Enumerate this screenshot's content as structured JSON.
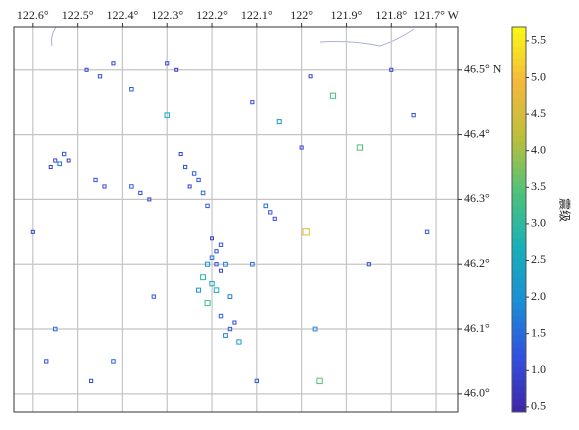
{
  "chart_data": {
    "type": "scatter",
    "xlabel_suffix_note": null,
    "xlim": [
      122.642,
      121.651
    ],
    "ylim": [
      45.972,
      46.566
    ],
    "xticks": [
      {
        "value": 122.6,
        "label": "122.6°"
      },
      {
        "value": 122.5,
        "label": "122.5°"
      },
      {
        "value": 122.4,
        "label": "122.4°"
      },
      {
        "value": 122.3,
        "label": "122.3°"
      },
      {
        "value": 122.2,
        "label": "122.2°"
      },
      {
        "value": 122.1,
        "label": "122.1°"
      },
      {
        "value": 122,
        "label": "122°"
      },
      {
        "value": 121.9,
        "label": "121.9°"
      },
      {
        "value": 121.8,
        "label": "121.8°"
      },
      {
        "value": 121.7,
        "label": "121.7° W"
      }
    ],
    "yticks": [
      {
        "value": 46.5,
        "label": "46.5° N"
      },
      {
        "value": 46.4,
        "label": "46.4°"
      },
      {
        "value": 46.3,
        "label": "46.3°"
      },
      {
        "value": 46.2,
        "label": "46.2°"
      },
      {
        "value": 46.1,
        "label": "46.1°"
      },
      {
        "value": 46.0,
        "label": "46.0°"
      }
    ],
    "grid": true,
    "colorbar_label": "震级",
    "clim": [
      0.43,
      5.69
    ],
    "cticks": [
      0.5,
      {
        "value": 1.0,
        "label": "1.0"
      },
      1.5,
      {
        "value": 2.0,
        "label": "2.0"
      },
      2.5,
      {
        "value": 3.0,
        "label": "3.0"
      },
      3.5,
      {
        "value": 4.0,
        "label": "4.0"
      },
      4.5,
      {
        "value": 5.0,
        "label": "5.0"
      },
      5.5
    ],
    "colormap": [
      "#3e26a8",
      "#3150df",
      "#1a8fd6",
      "#17b0b8",
      "#4fc279",
      "#bdbf3a",
      "#f5b83a",
      "#f9fa14"
    ],
    "events": {
      "lon": [
        122.19,
        122.2,
        122.18,
        122.21,
        122.19,
        122.17,
        122.22,
        122.2,
        122.18,
        122.19,
        122.16,
        122.21,
        122.23,
        122.18,
        122.2,
        122.55,
        122.53,
        122.56,
        122.54,
        122.52,
        122.26,
        122.24,
        122.25,
        122.23,
        122.27,
        122.22,
        122.21,
        122.48,
        122.45,
        122.42,
        122.3,
        122.28,
        122.38,
        122.07,
        122.06,
        122.08,
        122.16,
        122.15,
        122.17,
        122.14,
        122.36,
        122.34,
        122.38,
        122.46,
        122.44,
        121.93,
        122.0,
        121.87,
        121.99,
        121.97,
        121.96,
        122.6,
        122.57,
        122.47,
        122.1,
        121.75,
        121.8,
        121.72,
        121.85,
        121.98,
        122.11,
        122.3,
        122.55,
        122.33,
        122.42,
        122.05,
        122.11
      ],
      "lat": [
        46.2,
        46.21,
        46.19,
        46.2,
        46.22,
        46.2,
        46.18,
        46.17,
        46.23,
        46.16,
        46.15,
        46.14,
        46.16,
        46.12,
        46.24,
        46.36,
        46.37,
        46.35,
        46.355,
        46.36,
        46.35,
        46.34,
        46.32,
        46.33,
        46.37,
        46.31,
        46.29,
        46.5,
        46.49,
        46.51,
        46.51,
        46.5,
        46.47,
        46.28,
        46.27,
        46.29,
        46.1,
        46.11,
        46.09,
        46.08,
        46.31,
        46.3,
        46.32,
        46.33,
        46.32,
        46.46,
        46.38,
        46.38,
        46.25,
        46.1,
        46.02,
        46.25,
        46.05,
        46.02,
        46.02,
        46.43,
        46.5,
        46.25,
        46.2,
        46.49,
        46.45,
        46.43,
        46.1,
        46.15,
        46.05,
        46.42,
        46.2
      ],
      "magnitude": [
        1.2,
        1.5,
        0.9,
        2.1,
        1.1,
        1.8,
        3.0,
        2.4,
        1.3,
        2.6,
        1.7,
        3.2,
        2.0,
        1.4,
        0.8,
        1.0,
        1.3,
        0.9,
        1.6,
        0.8,
        1.1,
        1.4,
        0.9,
        1.2,
        1.0,
        1.5,
        1.3,
        0.9,
        1.2,
        1.0,
        1.1,
        0.8,
        1.4,
        1.2,
        1.0,
        1.5,
        1.3,
        1.0,
        1.7,
        2.2,
        1.1,
        0.9,
        1.4,
        1.2,
        1.0,
        3.3,
        1.0,
        3.4,
        4.5,
        1.8,
        3.5,
        1.0,
        1.2,
        1.1,
        1.3,
        1.2,
        1.0,
        1.3,
        1.1,
        0.9,
        1.0,
        2.5,
        1.5,
        1.2,
        1.4,
        2.0,
        1.6
      ]
    }
  }
}
